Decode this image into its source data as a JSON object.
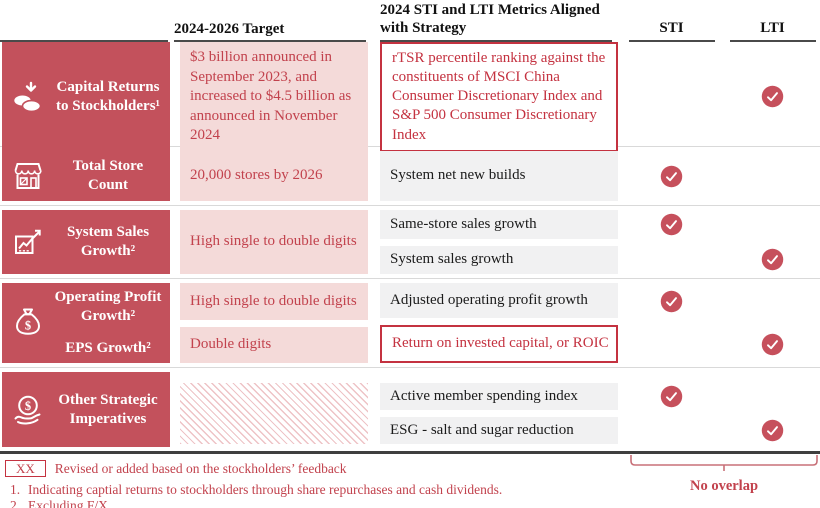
{
  "header": {
    "target_label": "2024-2026 Target",
    "metrics_label": [
      "2024 STI and LTI Metrics Aligned",
      "with Strategy"
    ],
    "sti_label": "STI",
    "lti_label": "LTI"
  },
  "rows": [
    {
      "icon": "coins-down-arrow-icon",
      "labels": [
        "Capital Returns to Stockholders¹"
      ],
      "targets": [
        {
          "text": "$3 billion announced in September 2023, and increased to $4.5 billion as announced in November 2024",
          "style": "pink"
        }
      ],
      "metrics": [
        {
          "text": "rTSR percentile ranking against the constituents of MSCI China Consumer Discretionary Index and S&P 500 Consumer Discretionary Index",
          "highlighted": true,
          "sti": false,
          "lti": true
        }
      ]
    },
    {
      "icon": "storefront-icon",
      "labels": [
        "Total Store Count"
      ],
      "targets": [
        {
          "text": "20,000 stores by 2026",
          "style": "pink"
        }
      ],
      "metrics": [
        {
          "text": "System net new builds",
          "highlighted": false,
          "sti": true,
          "lti": false
        }
      ]
    },
    {
      "icon": "growth-chart-icon",
      "labels": [
        "System Sales Growth²"
      ],
      "targets": [
        {
          "text": "High single to double digits",
          "style": "pink"
        }
      ],
      "metrics": [
        {
          "text": "Same-store sales growth",
          "highlighted": false,
          "sti": true,
          "lti": false
        },
        {
          "text": "System sales growth",
          "highlighted": false,
          "sti": false,
          "lti": true
        }
      ]
    },
    {
      "icon": "money-bag-icon",
      "labels": [
        "Operating Profit Growth²",
        "EPS Growth²"
      ],
      "targets": [
        {
          "text": "High single to double digits",
          "style": "pink"
        },
        {
          "text": "Double digits",
          "style": "pink"
        }
      ],
      "metrics": [
        {
          "text": "Adjusted operating profit growth",
          "highlighted": false,
          "sti": true,
          "lti": false
        },
        {
          "text": "Return on invested capital, or ROIC",
          "highlighted": true,
          "sti": false,
          "lti": true
        }
      ]
    },
    {
      "icon": "hand-dollar-icon",
      "labels": [
        "Other Strategic Imperatives"
      ],
      "targets": [
        {
          "text": "",
          "style": "hatched"
        }
      ],
      "metrics": [
        {
          "text": "Active member spending index",
          "highlighted": false,
          "sti": true,
          "lti": false
        },
        {
          "text": "ESG - salt and sugar reduction",
          "highlighted": false,
          "sti": false,
          "lti": true
        }
      ]
    }
  ],
  "legend": {
    "box_label": "XX",
    "text": "Revised or added based on the stockholders’ feedback"
  },
  "footnotes": [
    {
      "num": "1.",
      "text": "Indicating captial returns to stockholders through share repurchases and cash dividends."
    },
    {
      "num": "2.",
      "text": "Excluding F/X."
    }
  ],
  "no_overlap_label": "No overlap",
  "colors": {
    "brand_red": "#C3515C",
    "check_red": "#C6505C",
    "highlight_border_red": "#C43240",
    "pink_fill": "#F4DAD9",
    "red_text": "#C2424D",
    "metric_gray": "#F1F1F2",
    "rule_dark": "#3f3f3f"
  }
}
